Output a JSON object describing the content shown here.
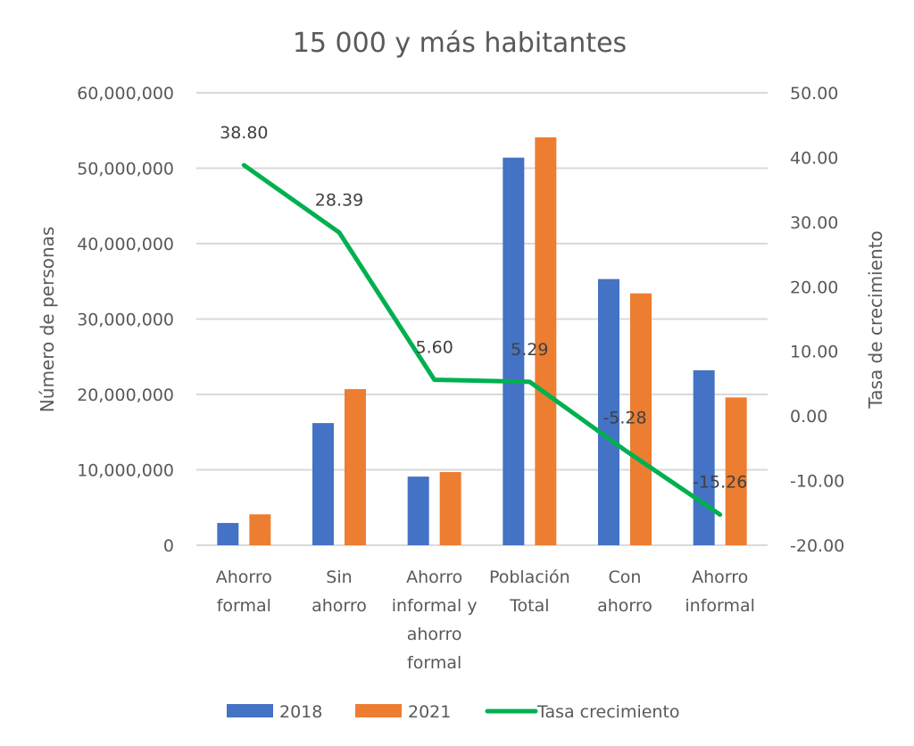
{
  "chart_data": {
    "type": "bar",
    "title": "15 000 y más habitantes",
    "categories": [
      [
        "Ahorro",
        "formal"
      ],
      [
        "Sin",
        "ahorro"
      ],
      [
        "Ahorro",
        "informal y",
        "ahorro",
        "formal"
      ],
      [
        "Población",
        "Total"
      ],
      [
        "Con",
        "ahorro"
      ],
      [
        "Ahorro",
        "informal"
      ]
    ],
    "series": [
      {
        "name": "2018",
        "type": "bar",
        "axis": "left",
        "color": "#4472C4",
        "values": [
          2950000,
          16200000,
          9100000,
          51400000,
          35300000,
          23200000
        ]
      },
      {
        "name": "2021",
        "type": "bar",
        "axis": "left",
        "color": "#ED7D31",
        "values": [
          4100000,
          20700000,
          9700000,
          54100000,
          33400000,
          19600000
        ]
      },
      {
        "name": "Tasa crecimiento",
        "type": "line",
        "axis": "right",
        "color": "#00B050",
        "values": [
          38.8,
          28.39,
          5.6,
          5.29,
          -5.28,
          -15.26
        ],
        "labels": [
          "38.80",
          "28.39",
          "5.60",
          "5.29",
          "-5.28",
          "-15.26"
        ]
      }
    ],
    "ylabel": "Número de personas",
    "ylim": [
      0,
      60000000
    ],
    "yticks": [
      "0",
      "10,000,000",
      "20,000,000",
      "30,000,000",
      "40,000,000",
      "50,000,000",
      "60,000,000"
    ],
    "y2label": "Tasa de crecimiento",
    "y2lim": [
      -20,
      50
    ],
    "y2ticks": [
      "-20.00",
      "-10.00",
      "0.00",
      "10.00",
      "20.00",
      "30.00",
      "40.00",
      "50.00"
    ],
    "grid": true,
    "legend_position": "bottom",
    "gridline_color": "#D9D9D9"
  }
}
